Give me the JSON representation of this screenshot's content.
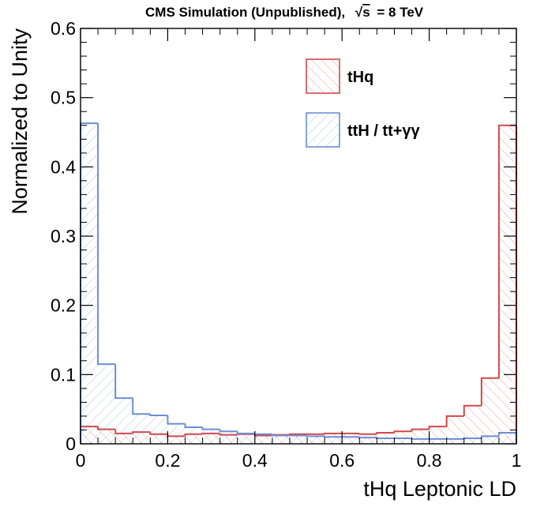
{
  "chart_data": {
    "type": "histogram",
    "header": {
      "label": "CMS Simulation (Unpublished),",
      "energy_sqrt": "√",
      "energy_symbol": "s",
      "energy_value": "= 8 TeV"
    },
    "xlabel": "tHq Leptonic LD",
    "ylabel": "Normalized to Unity",
    "xlim": [
      0,
      1
    ],
    "ylim": [
      0,
      0.6
    ],
    "x_ticks": [
      {
        "value": 0,
        "label": "0"
      },
      {
        "value": 0.2,
        "label": "0.2"
      },
      {
        "value": 0.4,
        "label": "0.4"
      },
      {
        "value": 0.6,
        "label": "0.6"
      },
      {
        "value": 0.8,
        "label": "0.8"
      },
      {
        "value": 1,
        "label": "1"
      }
    ],
    "y_ticks": [
      {
        "value": 0,
        "label": "0"
      },
      {
        "value": 0.1,
        "label": "0.1"
      },
      {
        "value": 0.2,
        "label": "0.2"
      },
      {
        "value": 0.3,
        "label": "0.3"
      },
      {
        "value": 0.4,
        "label": "0.4"
      },
      {
        "value": 0.5,
        "label": "0.5"
      },
      {
        "value": 0.6,
        "label": "0.6"
      }
    ],
    "bin_edges": [
      0,
      0.04,
      0.08,
      0.12,
      0.16,
      0.2,
      0.24,
      0.28,
      0.32,
      0.36,
      0.4,
      0.44,
      0.48,
      0.52,
      0.56,
      0.6,
      0.64,
      0.68,
      0.72,
      0.76,
      0.8,
      0.84,
      0.88,
      0.92,
      0.96,
      1.0
    ],
    "series": [
      {
        "name": "tHq",
        "color": "#d0494b",
        "values": [
          0.025,
          0.021,
          0.015,
          0.017,
          0.014,
          0.011,
          0.014,
          0.015,
          0.013,
          0.014,
          0.012,
          0.013,
          0.014,
          0.014,
          0.015,
          0.015,
          0.014,
          0.016,
          0.018,
          0.021,
          0.025,
          0.04,
          0.055,
          0.095,
          0.46
        ]
      },
      {
        "name": "ttH / tt+γγ",
        "color": "#6d8ed6",
        "values": [
          0.463,
          0.115,
          0.066,
          0.043,
          0.041,
          0.029,
          0.024,
          0.021,
          0.018,
          0.015,
          0.014,
          0.012,
          0.012,
          0.011,
          0.01,
          0.01,
          0.009,
          0.008,
          0.008,
          0.007,
          0.007,
          0.007,
          0.008,
          0.011,
          0.016
        ]
      }
    ],
    "legend": {
      "position": "top-right",
      "entries": [
        {
          "label": "tHq",
          "color": "#d0494b"
        },
        {
          "label": "ttH / tt+γγ",
          "color": "#6d8ed6"
        }
      ]
    }
  }
}
